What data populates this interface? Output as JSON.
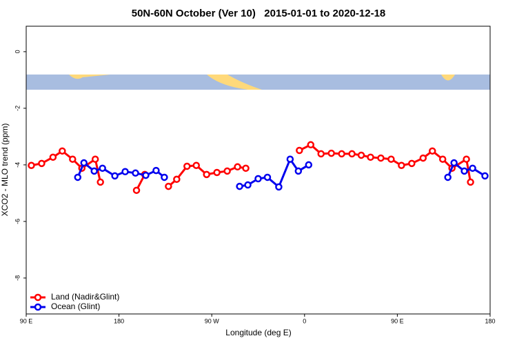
{
  "chart_data": {
    "type": "line",
    "title": "50N-60N October (Ver 10)   2015-01-01 to 2020-12-18",
    "x_label": "Longitude (deg E)",
    "y_label": "XCO2 - MLO trend (ppm)",
    "xlim": [
      90,
      540
    ],
    "ylim": [
      -9.27,
      0.9
    ],
    "xticks": [
      {
        "value": 90,
        "label": "90 E"
      },
      180,
      {
        "value": 270,
        "label": "90 W"
      },
      {
        "value": 360,
        "label": "0"
      },
      {
        "value": 450,
        "label": "90 E"
      },
      {
        "value": 540,
        "label": "180"
      }
    ],
    "yticks": [
      0,
      -2,
      -4,
      -6,
      -8
    ],
    "legend": "bottom-left",
    "series": [
      {
        "name": "Land (Nadir&Glint)",
        "color": "#ff0000",
        "x": [
          95,
          105,
          116,
          125,
          135,
          144,
          157,
          162,
          null,
          197,
          205,
          null,
          228,
          236,
          246,
          255,
          265,
          275,
          285,
          295,
          303,
          null,
          355,
          366,
          376,
          386,
          396,
          406,
          415,
          424,
          434,
          444,
          454,
          464,
          475,
          484,
          494,
          503,
          517,
          521
        ],
        "values": [
          -4.02,
          -3.95,
          -3.73,
          -3.51,
          -3.8,
          -4.12,
          -3.8,
          -4.61,
          null,
          -4.9,
          -4.34,
          null,
          -4.76,
          -4.51,
          -4.05,
          -4.02,
          -4.34,
          -4.27,
          -4.22,
          -4.07,
          -4.12,
          null,
          -3.49,
          -3.29,
          -3.61,
          -3.59,
          -3.61,
          -3.61,
          -3.66,
          -3.73,
          -3.76,
          -3.8,
          -4.02,
          -3.95,
          -3.76,
          -3.51,
          -3.8,
          -4.12,
          -3.8,
          -4.61
        ]
      },
      {
        "name": "Ocean (Glint)",
        "color": "#0000ee",
        "x": [
          140,
          146,
          156,
          164,
          176,
          186,
          196,
          206,
          216,
          224,
          null,
          297,
          305,
          315,
          324,
          335,
          346,
          354,
          364,
          null,
          499,
          505,
          515,
          523,
          535
        ],
        "values": [
          -4.44,
          -3.93,
          -4.22,
          -4.12,
          -4.39,
          -4.24,
          -4.29,
          -4.37,
          -4.2,
          -4.44,
          null,
          -4.76,
          -4.71,
          -4.49,
          -4.44,
          -4.78,
          -3.8,
          -4.22,
          -4.0,
          null,
          -4.44,
          -3.93,
          -4.22,
          -4.12,
          -4.39
        ]
      }
    ]
  }
}
